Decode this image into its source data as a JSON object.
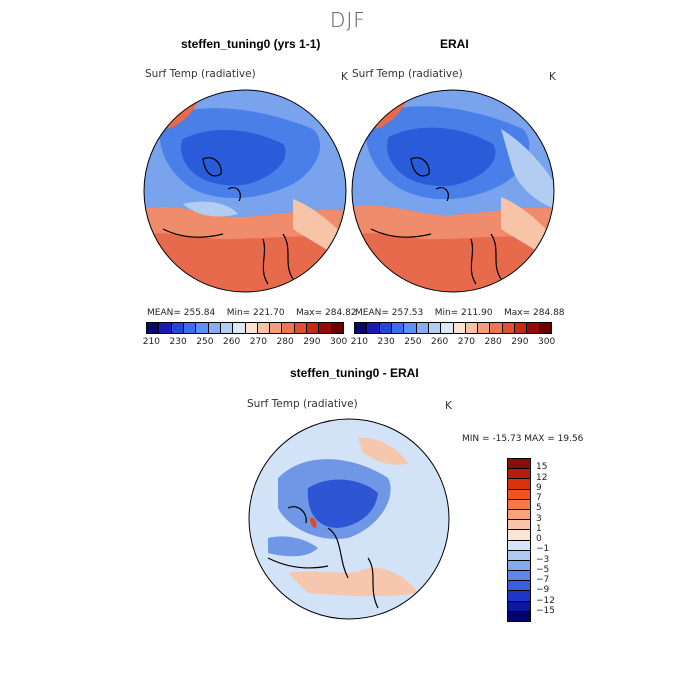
{
  "figure": {
    "season": "DJF",
    "variable_label": "Surf Temp (radiative)",
    "units": "K"
  },
  "panels": [
    {
      "title": "steffen_tuning0 (yrs 1-1)",
      "variable_label": "Surf Temp (radiative)",
      "units": "K",
      "stats": {
        "mean": "MEAN=  255.84",
        "min": "Min=  221.70",
        "max": "Max=  284.82"
      }
    },
    {
      "title": "ERAI",
      "variable_label": "Surf Temp (radiative)",
      "units": "K",
      "stats": {
        "mean": "MEAN=  257.53",
        "min": "Min=  211.90",
        "max": "Max=  284.88"
      }
    },
    {
      "title": "steffen_tuning0 - ERAI",
      "variable_label": "Surf Temp (radiative)",
      "units": "K",
      "stats": {
        "minmax": "MIN = -15.73  MAX =   19.56"
      }
    }
  ],
  "abs_colorbar": {
    "labels": [
      "210",
      "230",
      "250",
      "260",
      "270",
      "280",
      "290",
      "300"
    ],
    "colors": [
      "#08086e",
      "#1a1ab4",
      "#2846d6",
      "#3e6cf0",
      "#5f8ef7",
      "#88adf5",
      "#b4cef2",
      "#dde8f7",
      "#fbe2d4",
      "#f8c2a6",
      "#f39e7c",
      "#ec7654",
      "#e14f2f",
      "#c62a15",
      "#980a0a",
      "#6a0000"
    ]
  },
  "diff_colorbar": {
    "labels": [
      "15",
      "12",
      "9",
      "7",
      "5",
      "3",
      "1",
      "0",
      "−1",
      "−3",
      "−5",
      "−7",
      "−9",
      "−12",
      "−15"
    ],
    "colors": [
      "#8a0d0d",
      "#b51e0c",
      "#d9330c",
      "#ee5320",
      "#f47945",
      "#f7a27b",
      "#fac6ab",
      "#fde5d6",
      "#d7e6f7",
      "#aecaf2",
      "#85a9ec",
      "#5e86e5",
      "#3a5ee0",
      "#1e36c8",
      "#0a17a0",
      "#03036e"
    ]
  },
  "map_colors": {
    "cold_deep": "#2a5bd8",
    "cold_mid": "#4a7ee8",
    "cold_light": "#7aa3ee",
    "cool_pale": "#b2ccf2",
    "warm_pale": "#f8c4a8",
    "warm_mid": "#ef8c6c",
    "warm_deep": "#e86a4c",
    "diff_bg": "#d2e2f7",
    "diff_blue": "#6f97e6",
    "diff_deep": "#2e56d4",
    "diff_warm": "#f6c7ad",
    "diff_red": "#e24a2a"
  }
}
